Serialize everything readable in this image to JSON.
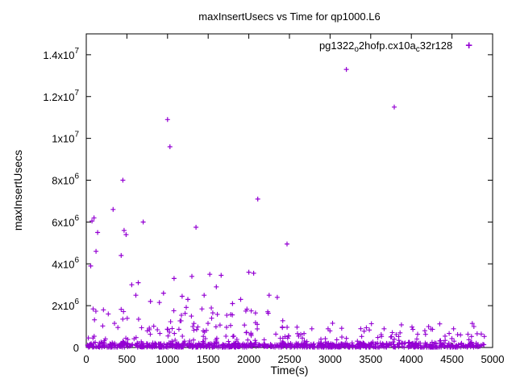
{
  "chart_data": {
    "type": "scatter",
    "title": "maxInsertUsecs vs Time for qp1000.L6",
    "xlabel": "Time(s)",
    "ylabel": "maxInsertUsecs",
    "xlim": [
      0,
      5000
    ],
    "ylim": [
      0,
      15000000
    ],
    "grid": false,
    "legend_position": "top-right-inside",
    "marker_glyph": "+",
    "color": "#9400d3",
    "series_name": "pg1322o2hofp.cx10ac32r128",
    "legend_parts": [
      {
        "t": "pg1322"
      },
      {
        "t": "o",
        "sub": true
      },
      {
        "t": "2hofp.cx10a"
      },
      {
        "t": "c",
        "sub": true
      },
      {
        "t": "32r128"
      }
    ],
    "xticks": [
      {
        "v": 0,
        "label": "0"
      },
      {
        "v": 500,
        "label": "500"
      },
      {
        "v": 1000,
        "label": "1000"
      },
      {
        "v": 1500,
        "label": "1500"
      },
      {
        "v": 2000,
        "label": "2000"
      },
      {
        "v": 2500,
        "label": "2500"
      },
      {
        "v": 3000,
        "label": "3000"
      },
      {
        "v": 3500,
        "label": "3500"
      },
      {
        "v": 4000,
        "label": "4000"
      },
      {
        "v": 4500,
        "label": "4500"
      },
      {
        "v": 5000,
        "label": "5000"
      }
    ],
    "yticks": [
      {
        "v": 0,
        "base": "0",
        "exp": ""
      },
      {
        "v": 2000000,
        "base": "2x10",
        "exp": "6"
      },
      {
        "v": 4000000,
        "base": "4x10",
        "exp": "6"
      },
      {
        "v": 6000000,
        "base": "6x10",
        "exp": "6"
      },
      {
        "v": 8000000,
        "base": "8x10",
        "exp": "6"
      },
      {
        "v": 10000000,
        "base": "1x10",
        "exp": "7"
      },
      {
        "v": 12000000,
        "base": "1.2x10",
        "exp": "7"
      },
      {
        "v": 14000000,
        "base": "1.4x10",
        "exp": "7"
      }
    ],
    "outlier_points": [
      [
        55,
        3900000
      ],
      [
        70,
        6050000
      ],
      [
        95,
        6200000
      ],
      [
        120,
        4600000
      ],
      [
        140,
        5500000
      ],
      [
        330,
        6600000
      ],
      [
        430,
        4400000
      ],
      [
        450,
        8000000
      ],
      [
        465,
        5600000
      ],
      [
        490,
        5400000
      ],
      [
        560,
        3000000
      ],
      [
        610,
        2500000
      ],
      [
        640,
        3100000
      ],
      [
        700,
        6000000
      ],
      [
        790,
        2200000
      ],
      [
        900,
        2150000
      ],
      [
        950,
        2600000
      ],
      [
        1000,
        10900000
      ],
      [
        1030,
        9600000
      ],
      [
        1080,
        3300000
      ],
      [
        1180,
        2450000
      ],
      [
        1250,
        2300000
      ],
      [
        1300,
        3400000
      ],
      [
        1350,
        5750000
      ],
      [
        1450,
        2500000
      ],
      [
        1520,
        3500000
      ],
      [
        1600,
        2900000
      ],
      [
        1660,
        3450000
      ],
      [
        1800,
        2100000
      ],
      [
        1900,
        2300000
      ],
      [
        2000,
        3600000
      ],
      [
        2060,
        3550000
      ],
      [
        2110,
        7100000
      ],
      [
        2250,
        2500000
      ],
      [
        2350,
        2400000
      ],
      [
        2470,
        4950000
      ],
      [
        3200,
        13300000
      ],
      [
        3790,
        11500000
      ]
    ],
    "band": {
      "description": "dense noise band of max-insert latencies hugging the x-axis, mostly below 1.5e6 before t=2550 and below 1.15e6 after",
      "seed": 1337,
      "main_count": 520,
      "dense_count": 430,
      "x_min": 15,
      "x_max": 4900,
      "x_break": 2550,
      "y_cap_early": 1900000,
      "y_cap_late": 1150000,
      "shape": 3.6,
      "y_floor": 15000,
      "dense_y_min": 20000,
      "dense_y_max": 220000
    }
  }
}
